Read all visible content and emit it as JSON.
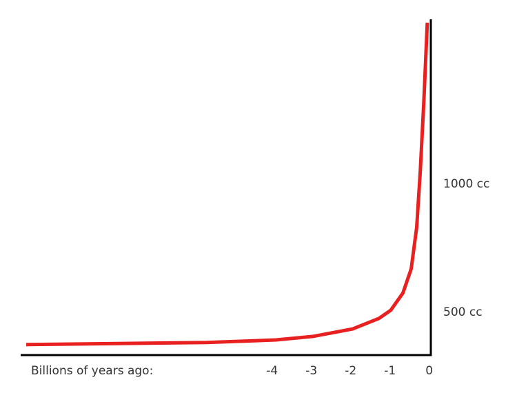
{
  "chart_data": {
    "type": "line",
    "x_label": "Billions of years ago:",
    "x": [
      -10.26,
      -5.67,
      -3.9,
      -2.95,
      -1.95,
      -1.28,
      -0.98,
      -0.67,
      -0.46,
      -0.32,
      -0.23,
      -0.14,
      -0.05
    ],
    "values": [
      374,
      382,
      392,
      406,
      435,
      476,
      508,
      575,
      669,
      831,
      1046,
      1315,
      1629
    ],
    "color": "#e8201f",
    "xlim": [
      -10.4,
      0.04
    ],
    "xticks": [
      -4,
      -3,
      -2,
      -1,
      0
    ],
    "ylim": [
      333,
      1642
    ],
    "yticks": [
      {
        "value": 500,
        "label": "500 cc"
      },
      {
        "value": 1000,
        "label": "1000 cc"
      }
    ],
    "grid": false
  }
}
